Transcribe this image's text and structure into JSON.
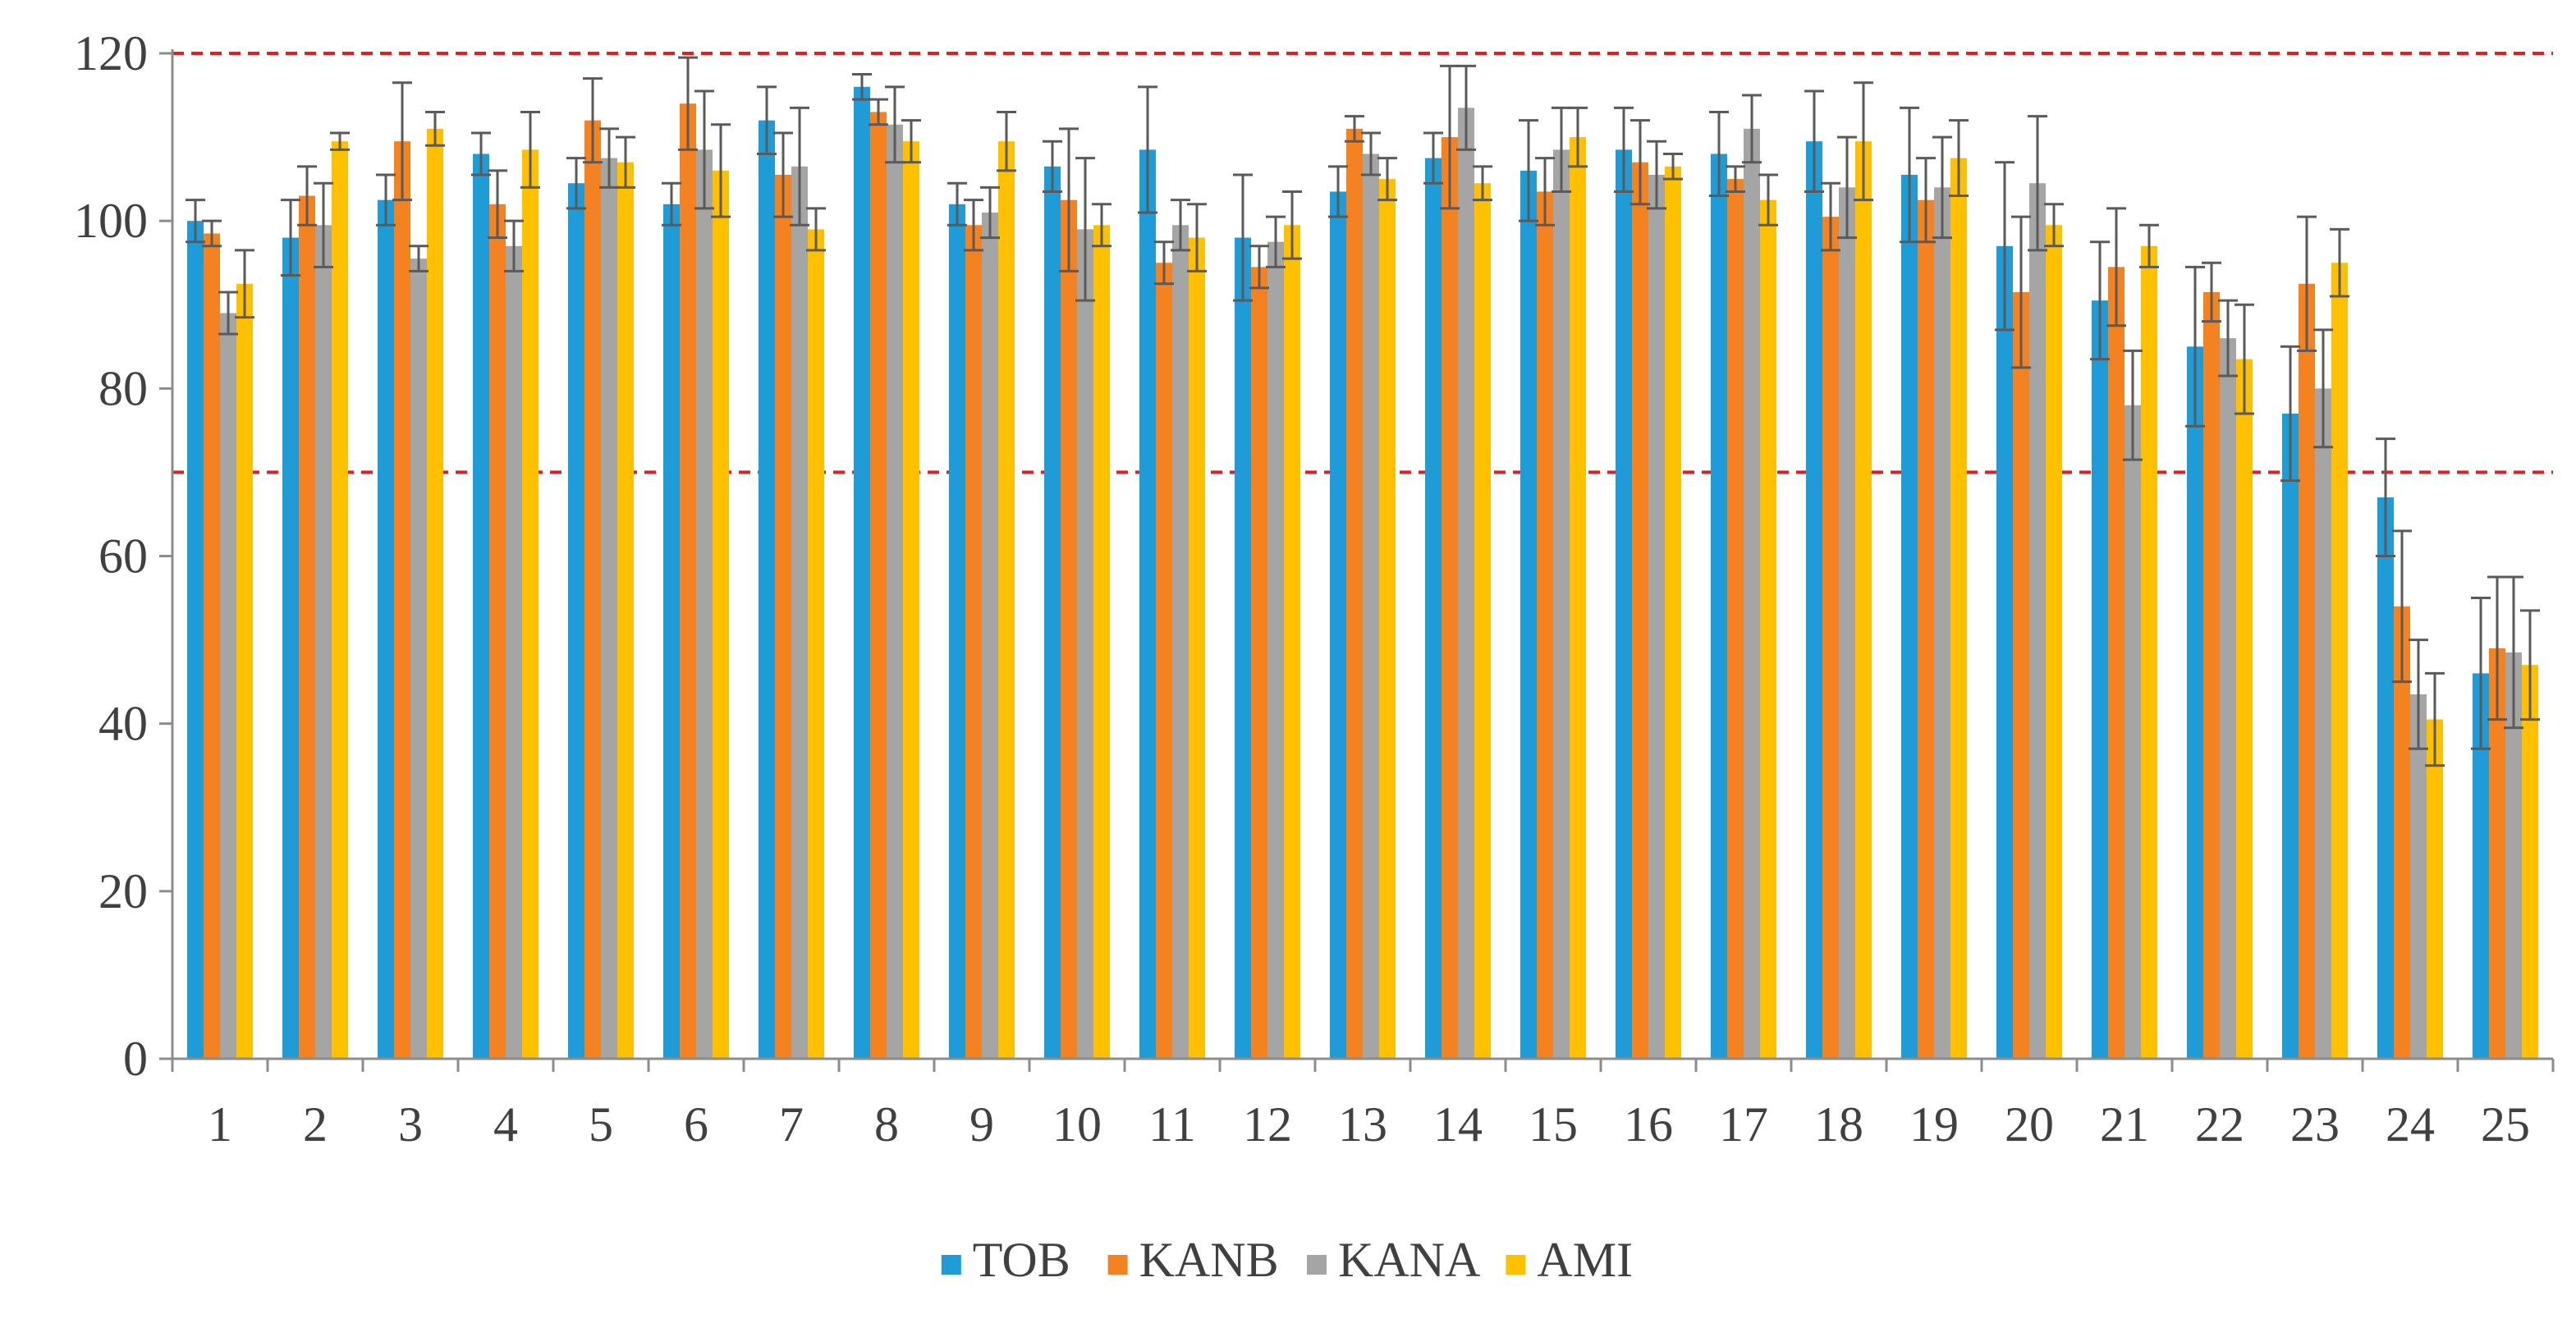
{
  "chart_data": {
    "type": "bar",
    "title": "",
    "xlabel": "",
    "ylabel": "",
    "ylim": [
      0,
      120
    ],
    "yticks": [
      0,
      20,
      40,
      60,
      80,
      100,
      120
    ],
    "categories": [
      "1",
      "2",
      "3",
      "4",
      "5",
      "6",
      "7",
      "8",
      "9",
      "10",
      "11",
      "12",
      "13",
      "14",
      "15",
      "16",
      "17",
      "18",
      "19",
      "20",
      "21",
      "22",
      "23",
      "24",
      "25"
    ],
    "series": [
      {
        "name": "TOB",
        "color": "#1F9BD7",
        "values": [
          100,
          98,
          102.5,
          108,
          104.5,
          102,
          112,
          116,
          102,
          106.5,
          108.5,
          98,
          103.5,
          107.5,
          106,
          108.5,
          108,
          109.5,
          105.5,
          97,
          90.5,
          85,
          77,
          67,
          46
        ],
        "errors": [
          2.5,
          4.5,
          3,
          2.5,
          3,
          2.5,
          4,
          1.5,
          2.5,
          3,
          7.5,
          7.5,
          3,
          3,
          6,
          5,
          5,
          6,
          8,
          10,
          7,
          9.5,
          8,
          7,
          9
        ]
      },
      {
        "name": "KANB",
        "color": "#F58220",
        "values": [
          98.5,
          103,
          109.5,
          102,
          112,
          114,
          105.5,
          113,
          99.5,
          102.5,
          95,
          94.5,
          111,
          110,
          103.5,
          107,
          105,
          100.5,
          102.5,
          91.5,
          94.5,
          91.5,
          92.5,
          54,
          49
        ],
        "errors": [
          1.5,
          3.5,
          7,
          4,
          5,
          5.5,
          5,
          1.5,
          3,
          8.5,
          2.5,
          2.5,
          1.5,
          8.5,
          4,
          5,
          1.5,
          4,
          5,
          9,
          7,
          3.5,
          8,
          9,
          8.5
        ]
      },
      {
        "name": "KANA",
        "color": "#A5A5A5",
        "values": [
          89,
          99.5,
          95.5,
          97,
          107.5,
          108.5,
          106.5,
          111.5,
          101,
          99,
          99.5,
          97.5,
          108,
          113.5,
          108.5,
          105.5,
          111,
          104,
          104,
          104.5,
          78,
          86,
          80,
          43.5,
          48.5
        ],
        "errors": [
          2.5,
          5,
          1.5,
          3,
          3.5,
          7,
          7,
          4.5,
          3,
          8.5,
          3,
          3,
          2.5,
          5,
          5,
          4,
          4,
          6,
          6,
          8,
          6.5,
          4.5,
          7,
          6.5,
          9
        ]
      },
      {
        "name": "AMI",
        "color": "#FFC000",
        "values": [
          92.5,
          109.5,
          111,
          108.5,
          107,
          106,
          99,
          109.5,
          109.5,
          99.5,
          98,
          99.5,
          105,
          104.5,
          110,
          106.5,
          102.5,
          109.5,
          107.5,
          99.5,
          97,
          83.5,
          95,
          40.5,
          47
        ],
        "errors": [
          4,
          1,
          2,
          4.5,
          3,
          5.5,
          2.5,
          2.5,
          3.5,
          2.5,
          4,
          4,
          2.5,
          2,
          3.5,
          1.5,
          3,
          7,
          4.5,
          2.5,
          2.5,
          6.5,
          4,
          5.5,
          6.5
        ]
      }
    ],
    "reference_lines": [
      {
        "y": 120,
        "color": "#E02020",
        "style": "dashed"
      },
      {
        "y": 70,
        "color": "#E02020",
        "style": "dashed"
      }
    ],
    "legend": {
      "position": "bottom",
      "entries": [
        "TOB",
        "KANB",
        "KANA",
        "AMI"
      ]
    },
    "grid": false
  }
}
